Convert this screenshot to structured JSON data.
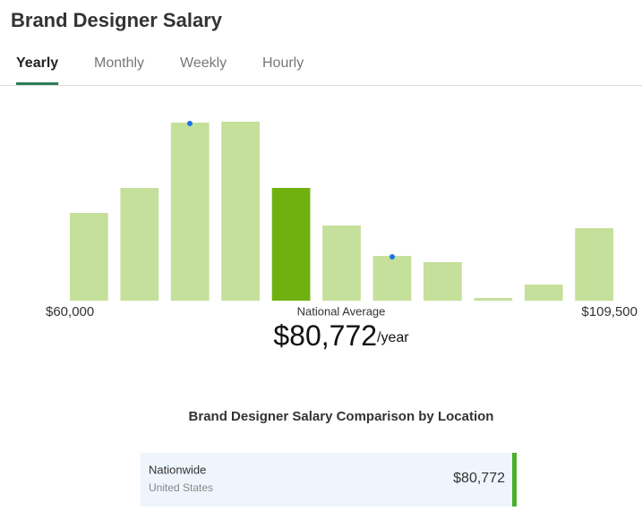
{
  "header": {
    "title": "Brand Designer Salary"
  },
  "tabs": {
    "items": [
      "Yearly",
      "Monthly",
      "Weekly",
      "Hourly"
    ],
    "active": 0
  },
  "chart_data": {
    "type": "histogram",
    "bins": [
      60000,
      64500,
      69000,
      73500,
      78000,
      82500,
      87000,
      91500,
      96000,
      100500,
      105000,
      109500
    ],
    "values": [
      98,
      126,
      199,
      200,
      126,
      84,
      50,
      43,
      3,
      18,
      81
    ],
    "color": "#c5e09a",
    "highlight_color": "#70b10f",
    "xlim": [
      60000,
      109500
    ],
    "xticks": [
      {
        "value": 60000,
        "label": "$60,000"
      },
      {
        "value": 109500,
        "label": "$109,500"
      }
    ],
    "average": {
      "label": "National Average",
      "value": 80772,
      "value_label": "$80,772",
      "unit": "/year"
    }
  },
  "comparison": {
    "title": "Brand Designer Salary Comparison by Location",
    "rows": [
      {
        "name": "Nationwide",
        "location": "United States",
        "value": "$80,772"
      }
    ]
  }
}
